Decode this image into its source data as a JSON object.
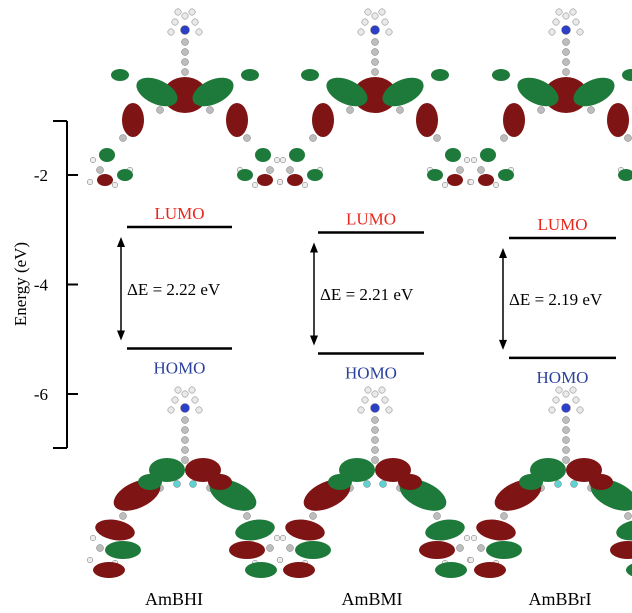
{
  "axis": {
    "label": "Energy (eV)",
    "ticks": [
      {
        "value": -2,
        "label": "-2"
      },
      {
        "value": -4,
        "label": "-4"
      },
      {
        "value": -6,
        "label": "-6"
      }
    ]
  },
  "colors": {
    "lumo_text": "#e8261c",
    "homo_text": "#2b3f9c",
    "orbital_red": "#7e1414",
    "orbital_green": "#1e7a3a",
    "atom_gray": "#bdbdbd",
    "atom_blue": "#2b3fc7",
    "atom_cyan": "#5fd3d3"
  },
  "compounds": [
    {
      "name": "AmBHI",
      "lumo_label": "LUMO",
      "homo_label": "HOMO",
      "gap_label": "ΔE = 2.22 eV",
      "lumo_ev": -2.95,
      "homo_ev": -5.17
    },
    {
      "name": "AmBMI",
      "lumo_label": "LUMO",
      "homo_label": "HOMO",
      "gap_label": "ΔE = 2.21 eV",
      "lumo_ev": -3.05,
      "homo_ev": -5.26
    },
    {
      "name": "AmBBrI",
      "lumo_label": "LUMO",
      "homo_label": "HOMO",
      "gap_label": "ΔE = 2.19 eV",
      "lumo_ev": -3.15,
      "homo_ev": -5.34
    }
  ]
}
